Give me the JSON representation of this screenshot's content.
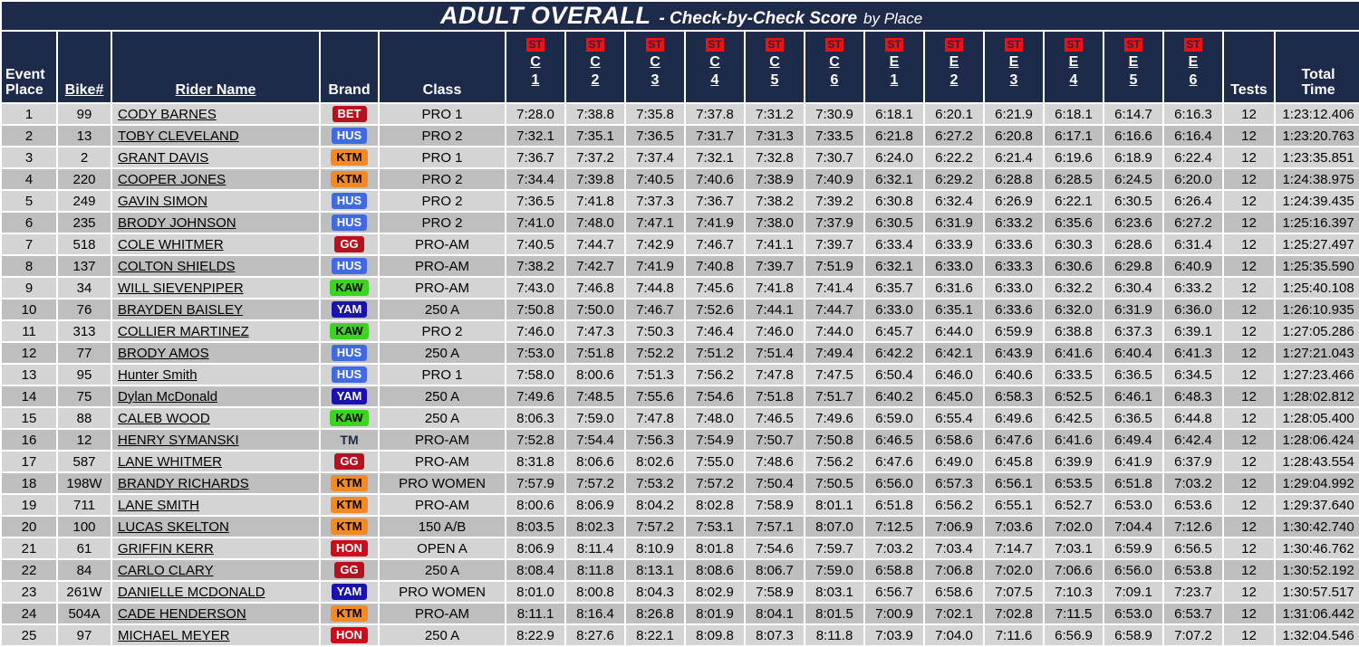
{
  "title": {
    "main": "ADULT OVERALL",
    "sub": "- Check-by-Check Score",
    "suffix": "by Place"
  },
  "header": {
    "event_place": "Event Place",
    "bike": "Bike#",
    "rider": "Rider Name",
    "brand": "Brand",
    "class": "Class",
    "tests": "Tests",
    "total": "Total Time"
  },
  "check_columns": [
    {
      "tag": "ST",
      "letter": "C",
      "number": "1"
    },
    {
      "tag": "ST",
      "letter": "C",
      "number": "2"
    },
    {
      "tag": "ST",
      "letter": "C",
      "number": "3"
    },
    {
      "tag": "ST",
      "letter": "C",
      "number": "4"
    },
    {
      "tag": "ST",
      "letter": "C",
      "number": "5"
    },
    {
      "tag": "ST",
      "letter": "C",
      "number": "6"
    },
    {
      "tag": "ST",
      "letter": "E",
      "number": "1"
    },
    {
      "tag": "ST",
      "letter": "E",
      "number": "2"
    },
    {
      "tag": "ST",
      "letter": "E",
      "number": "3"
    },
    {
      "tag": "ST",
      "letter": "E",
      "number": "4"
    },
    {
      "tag": "ST",
      "letter": "E",
      "number": "5"
    },
    {
      "tag": "ST",
      "letter": "E",
      "number": "6"
    }
  ],
  "colors": {
    "navy": "#1e2a4a",
    "st_badge_bg": "#ee1111",
    "row_light": "#d4d4d4",
    "row_dark": "#bebebe"
  },
  "brand_colors": {
    "BET": {
      "bg": "#b5121f",
      "fg": "#ffffff"
    },
    "HUS": {
      "bg": "#4169e1",
      "fg": "#ffffff"
    },
    "KTM": {
      "bg": "#f6891f",
      "fg": "#000000"
    },
    "KAW": {
      "bg": "#3fd321",
      "fg": "#000000"
    },
    "YAM": {
      "bg": "#1b12ae",
      "fg": "#ffffff"
    },
    "GG": {
      "bg": "#b5121f",
      "fg": "#ffffff"
    },
    "HON": {
      "bg": "#cf0a1a",
      "fg": "#ffffff"
    },
    "TM": {
      "bg": "none",
      "fg": "#1e2a4a"
    }
  },
  "rows": [
    {
      "place": "1",
      "bike": "99",
      "name": "CODY BARNES",
      "brand": "BET",
      "class": "PRO 1",
      "scores": [
        "7:28.0",
        "7:38.8",
        "7:35.8",
        "7:37.8",
        "7:31.2",
        "7:30.9",
        "6:18.1",
        "6:20.1",
        "6:21.9",
        "6:18.1",
        "6:14.7",
        "6:16.3"
      ],
      "tests": "12",
      "total": "1:23:12.406"
    },
    {
      "place": "2",
      "bike": "13",
      "name": "TOBY CLEVELAND",
      "brand": "HUS",
      "class": "PRO 2",
      "scores": [
        "7:32.1",
        "7:35.1",
        "7:36.5",
        "7:31.7",
        "7:31.3",
        "7:33.5",
        "6:21.8",
        "6:27.2",
        "6:20.8",
        "6:17.1",
        "6:16.6",
        "6:16.4"
      ],
      "tests": "12",
      "total": "1:23:20.763"
    },
    {
      "place": "3",
      "bike": "2",
      "name": "GRANT DAVIS",
      "brand": "KTM",
      "class": "PRO 1",
      "scores": [
        "7:36.7",
        "7:37.2",
        "7:37.4",
        "7:32.1",
        "7:32.8",
        "7:30.7",
        "6:24.0",
        "6:22.2",
        "6:21.4",
        "6:19.6",
        "6:18.9",
        "6:22.4"
      ],
      "tests": "12",
      "total": "1:23:35.851"
    },
    {
      "place": "4",
      "bike": "220",
      "name": "COOPER JONES",
      "brand": "KTM",
      "class": "PRO 2",
      "scores": [
        "7:34.4",
        "7:39.8",
        "7:40.5",
        "7:40.6",
        "7:38.9",
        "7:40.9",
        "6:32.1",
        "6:29.2",
        "6:28.8",
        "6:28.5",
        "6:24.5",
        "6:20.0"
      ],
      "tests": "12",
      "total": "1:24:38.975"
    },
    {
      "place": "5",
      "bike": "249",
      "name": "GAVIN SIMON",
      "brand": "HUS",
      "class": "PRO 2",
      "scores": [
        "7:36.5",
        "7:41.8",
        "7:37.3",
        "7:36.7",
        "7:38.2",
        "7:39.2",
        "6:30.8",
        "6:32.4",
        "6:26.9",
        "6:22.1",
        "6:30.5",
        "6:26.4"
      ],
      "tests": "12",
      "total": "1:24:39.435"
    },
    {
      "place": "6",
      "bike": "235",
      "name": "BRODY JOHNSON",
      "brand": "HUS",
      "class": "PRO 2",
      "scores": [
        "7:41.0",
        "7:48.0",
        "7:47.1",
        "7:41.9",
        "7:38.0",
        "7:37.9",
        "6:30.5",
        "6:31.9",
        "6:33.2",
        "6:35.6",
        "6:23.6",
        "6:27.2"
      ],
      "tests": "12",
      "total": "1:25:16.397"
    },
    {
      "place": "7",
      "bike": "518",
      "name": "COLE WHITMER",
      "brand": "GG",
      "class": "PRO-AM",
      "scores": [
        "7:40.5",
        "7:44.7",
        "7:42.9",
        "7:46.7",
        "7:41.1",
        "7:39.7",
        "6:33.4",
        "6:33.9",
        "6:33.6",
        "6:30.3",
        "6:28.6",
        "6:31.4"
      ],
      "tests": "12",
      "total": "1:25:27.497"
    },
    {
      "place": "8",
      "bike": "137",
      "name": "COLTON SHIELDS",
      "brand": "HUS",
      "class": "PRO-AM",
      "scores": [
        "7:38.2",
        "7:42.7",
        "7:41.9",
        "7:40.8",
        "7:39.7",
        "7:51.9",
        "6:32.1",
        "6:33.0",
        "6:33.3",
        "6:30.6",
        "6:29.8",
        "6:40.9"
      ],
      "tests": "12",
      "total": "1:25:35.590"
    },
    {
      "place": "9",
      "bike": "34",
      "name": "WILL SIEVENPIPER",
      "brand": "KAW",
      "class": "PRO-AM",
      "scores": [
        "7:43.0",
        "7:46.8",
        "7:44.8",
        "7:45.6",
        "7:41.8",
        "7:41.4",
        "6:35.7",
        "6:31.6",
        "6:33.0",
        "6:32.2",
        "6:30.4",
        "6:33.2"
      ],
      "tests": "12",
      "total": "1:25:40.108"
    },
    {
      "place": "10",
      "bike": "76",
      "name": "BRAYDEN BAISLEY",
      "brand": "YAM",
      "class": "250 A",
      "scores": [
        "7:50.8",
        "7:50.0",
        "7:46.7",
        "7:52.6",
        "7:44.1",
        "7:44.7",
        "6:33.0",
        "6:35.1",
        "6:33.6",
        "6:32.0",
        "6:31.9",
        "6:36.0"
      ],
      "tests": "12",
      "total": "1:26:10.935"
    },
    {
      "place": "11",
      "bike": "313",
      "name": "COLLIER MARTINEZ",
      "brand": "KAW",
      "class": "PRO 2",
      "scores": [
        "7:46.0",
        "7:47.3",
        "7:50.3",
        "7:46.4",
        "7:46.0",
        "7:44.0",
        "6:45.7",
        "6:44.0",
        "6:59.9",
        "6:38.8",
        "6:37.3",
        "6:39.1"
      ],
      "tests": "12",
      "total": "1:27:05.286"
    },
    {
      "place": "12",
      "bike": "77",
      "name": "BRODY AMOS",
      "brand": "HUS",
      "class": "250 A",
      "scores": [
        "7:53.0",
        "7:51.8",
        "7:52.2",
        "7:51.2",
        "7:51.4",
        "7:49.4",
        "6:42.2",
        "6:42.1",
        "6:43.9",
        "6:41.6",
        "6:40.4",
        "6:41.3"
      ],
      "tests": "12",
      "total": "1:27:21.043"
    },
    {
      "place": "13",
      "bike": "95",
      "name": "Hunter Smith",
      "brand": "HUS",
      "class": "PRO 1",
      "scores": [
        "7:58.0",
        "8:00.6",
        "7:51.3",
        "7:56.2",
        "7:47.8",
        "7:47.5",
        "6:50.4",
        "6:46.0",
        "6:40.6",
        "6:33.5",
        "6:36.5",
        "6:34.5"
      ],
      "tests": "12",
      "total": "1:27:23.466"
    },
    {
      "place": "14",
      "bike": "75",
      "name": "Dylan McDonald",
      "brand": "YAM",
      "class": "250 A",
      "scores": [
        "7:49.6",
        "7:48.5",
        "7:55.6",
        "7:54.6",
        "7:51.8",
        "7:51.7",
        "6:40.2",
        "6:45.0",
        "6:58.3",
        "6:52.5",
        "6:46.1",
        "6:48.3"
      ],
      "tests": "12",
      "total": "1:28:02.812"
    },
    {
      "place": "15",
      "bike": "88",
      "name": "CALEB WOOD",
      "brand": "KAW",
      "class": "250 A",
      "scores": [
        "8:06.3",
        "7:59.0",
        "7:47.8",
        "7:48.0",
        "7:46.5",
        "7:49.6",
        "6:59.0",
        "6:55.4",
        "6:49.6",
        "6:42.5",
        "6:36.5",
        "6:44.8"
      ],
      "tests": "12",
      "total": "1:28:05.400"
    },
    {
      "place": "16",
      "bike": "12",
      "name": "HENRY SYMANSKI",
      "brand": "TM",
      "class": "PRO-AM",
      "scores": [
        "7:52.8",
        "7:54.4",
        "7:56.3",
        "7:54.9",
        "7:50.7",
        "7:50.8",
        "6:46.5",
        "6:58.6",
        "6:47.6",
        "6:41.6",
        "6:49.4",
        "6:42.4"
      ],
      "tests": "12",
      "total": "1:28:06.424"
    },
    {
      "place": "17",
      "bike": "587",
      "name": "LANE WHITMER",
      "brand": "GG",
      "class": "PRO-AM",
      "scores": [
        "8:31.8",
        "8:06.6",
        "8:02.6",
        "7:55.0",
        "7:48.6",
        "7:56.2",
        "6:47.6",
        "6:49.0",
        "6:45.8",
        "6:39.9",
        "6:41.9",
        "6:37.9"
      ],
      "tests": "12",
      "total": "1:28:43.554"
    },
    {
      "place": "18",
      "bike": "198W",
      "name": "BRANDY RICHARDS",
      "brand": "KTM",
      "class": "PRO WOMEN",
      "scores": [
        "7:57.9",
        "7:57.2",
        "7:53.2",
        "7:57.2",
        "7:50.4",
        "7:50.5",
        "6:56.0",
        "6:57.3",
        "6:56.1",
        "6:53.5",
        "6:51.8",
        "7:03.2"
      ],
      "tests": "12",
      "total": "1:29:04.992"
    },
    {
      "place": "19",
      "bike": "711",
      "name": "LANE SMITH",
      "brand": "KTM",
      "class": "PRO-AM",
      "scores": [
        "8:00.6",
        "8:06.9",
        "8:04.2",
        "8:02.8",
        "7:58.9",
        "8:01.1",
        "6:51.8",
        "6:56.2",
        "6:55.1",
        "6:52.7",
        "6:53.0",
        "6:53.6"
      ],
      "tests": "12",
      "total": "1:29:37.640"
    },
    {
      "place": "20",
      "bike": "100",
      "name": "LUCAS SKELTON",
      "brand": "KTM",
      "class": "150 A/B",
      "scores": [
        "8:03.5",
        "8:02.3",
        "7:57.2",
        "7:53.1",
        "7:57.1",
        "8:07.0",
        "7:12.5",
        "7:06.9",
        "7:03.6",
        "7:02.0",
        "7:04.4",
        "7:12.6"
      ],
      "tests": "12",
      "total": "1:30:42.740"
    },
    {
      "place": "21",
      "bike": "61",
      "name": "GRIFFIN KERR",
      "brand": "HON",
      "class": "OPEN A",
      "scores": [
        "8:06.9",
        "8:11.4",
        "8:10.9",
        "8:01.8",
        "7:54.6",
        "7:59.7",
        "7:03.2",
        "7:03.4",
        "7:14.7",
        "7:03.1",
        "6:59.9",
        "6:56.5"
      ],
      "tests": "12",
      "total": "1:30:46.762"
    },
    {
      "place": "22",
      "bike": "84",
      "name": "CARLO CLARY",
      "brand": "GG",
      "class": "250 A",
      "scores": [
        "8:08.4",
        "8:11.8",
        "8:13.1",
        "8:08.6",
        "8:06.7",
        "7:59.0",
        "6:58.8",
        "7:06.8",
        "7:02.0",
        "7:06.6",
        "6:56.0",
        "6:53.8"
      ],
      "tests": "12",
      "total": "1:30:52.192"
    },
    {
      "place": "23",
      "bike": "261W",
      "name": "DANIELLE MCDONALD",
      "brand": "YAM",
      "class": "PRO WOMEN",
      "scores": [
        "8:01.0",
        "8:00.8",
        "8:04.3",
        "8:02.9",
        "7:58.9",
        "8:03.1",
        "6:56.7",
        "6:58.6",
        "7:07.5",
        "7:10.3",
        "7:09.1",
        "7:23.7"
      ],
      "tests": "12",
      "total": "1:30:57.517"
    },
    {
      "place": "24",
      "bike": "504A",
      "name": "CADE HENDERSON",
      "brand": "KTM",
      "class": "PRO-AM",
      "scores": [
        "8:11.1",
        "8:16.4",
        "8:26.8",
        "8:01.9",
        "8:04.1",
        "8:01.5",
        "7:00.9",
        "7:02.1",
        "7:02.8",
        "7:11.5",
        "6:53.0",
        "6:53.7"
      ],
      "tests": "12",
      "total": "1:31:06.442"
    },
    {
      "place": "25",
      "bike": "97",
      "name": "MICHAEL MEYER",
      "brand": "HON",
      "class": "250 A",
      "scores": [
        "8:22.9",
        "8:27.6",
        "8:22.1",
        "8:09.8",
        "8:07.3",
        "8:11.8",
        "7:03.9",
        "7:04.0",
        "7:11.6",
        "6:56.9",
        "6:58.9",
        "7:07.2"
      ],
      "tests": "12",
      "total": "1:32:04.546"
    }
  ]
}
